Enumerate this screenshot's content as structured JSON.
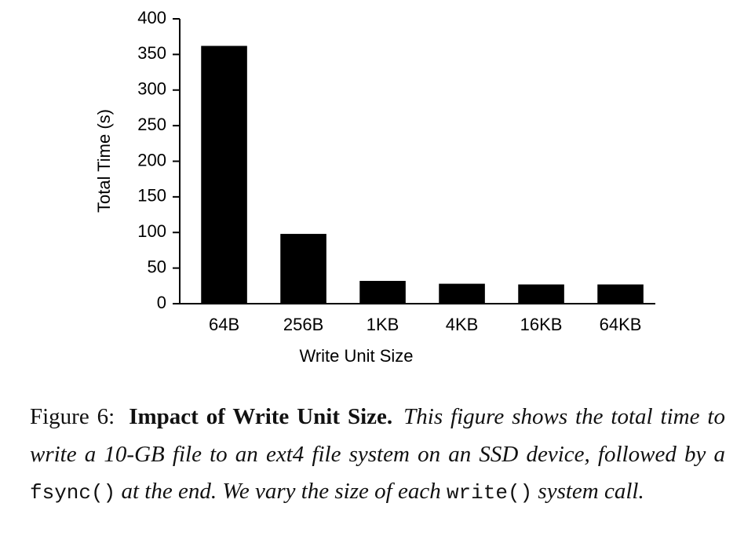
{
  "chart_data": {
    "type": "bar",
    "categories": [
      "64B",
      "256B",
      "1KB",
      "4KB",
      "16KB",
      "64KB"
    ],
    "values": [
      362,
      98,
      32,
      28,
      27,
      27
    ],
    "color": "#000000",
    "ylim": [
      0,
      400
    ],
    "yticks": [
      0,
      50,
      100,
      150,
      200,
      250,
      300,
      350,
      400
    ],
    "xlabel": "Write Unit Size",
    "ylabel": "Total Time (s)",
    "grid": false
  },
  "caption": {
    "label": "Figure 6:",
    "title": "Impact of Write Unit Size.",
    "body": [
      "This figure shows the total time to write a 10-GB file to an ext4 file system on an SSD device, followed by a ",
      "fsync()",
      " at the end. We vary the size of each ",
      "write()",
      " system call."
    ]
  }
}
